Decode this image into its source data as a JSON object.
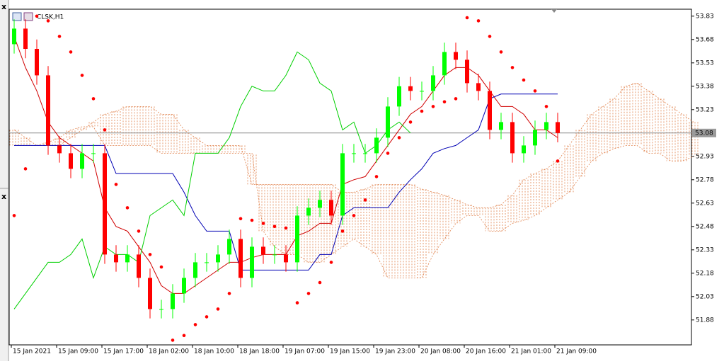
{
  "window": {
    "close_marks": [
      "x",
      "x"
    ]
  },
  "chart_data": {
    "type": "candlestick",
    "title": "CLSK,H1",
    "x_labels": [
      "15 Jan 2021",
      "15 Jan 09:00",
      "15 Jan 17:00",
      "18 Jan 02:00",
      "18 Jan 10:00",
      "18 Jan 18:00",
      "19 Jan 07:00",
      "19 Jan 15:00",
      "19 Jan 23:00",
      "20 Jan 08:00",
      "20 Jan 16:00",
      "21 Jan 01:00",
      "21 Jan 09:00"
    ],
    "ylim": [
      51.72,
      53.87
    ],
    "yticks": [
      53.83,
      53.68,
      53.53,
      53.38,
      53.23,
      52.93,
      52.78,
      52.63,
      52.48,
      52.33,
      52.18,
      52.03,
      51.88
    ],
    "last_price": 53.08,
    "up_color": "#00ff00",
    "down_color": "#ff0000",
    "open": [
      53.65,
      53.75,
      53.62,
      53.45,
      53.0,
      52.95,
      52.85,
      52.95,
      52.95,
      52.3,
      52.25,
      52.3,
      52.15,
      51.95,
      51.95,
      52.05,
      52.15,
      52.25,
      52.25,
      52.3,
      52.4,
      52.15,
      52.35,
      52.3,
      52.3,
      52.25,
      52.55,
      52.6,
      52.65,
      52.55,
      52.95,
      52.95,
      52.95,
      53.05,
      53.25,
      53.38,
      53.35,
      53.35,
      53.45,
      53.6,
      53.55,
      53.4,
      53.35,
      53.1,
      53.15,
      52.95,
      53.0,
      53.1,
      53.15
    ],
    "high": [
      53.81,
      53.81,
      53.68,
      53.51,
      53.06,
      53.01,
      53.01,
      53.01,
      53.01,
      52.36,
      52.36,
      52.36,
      52.21,
      52.01,
      52.11,
      52.21,
      52.31,
      52.31,
      52.36,
      52.46,
      52.46,
      52.41,
      52.41,
      52.36,
      52.36,
      52.61,
      52.66,
      52.71,
      52.71,
      53.01,
      53.01,
      53.01,
      53.11,
      53.31,
      53.44,
      53.44,
      53.41,
      53.51,
      53.66,
      53.66,
      53.61,
      53.46,
      53.41,
      53.21,
      53.21,
      53.06,
      53.16,
      53.21,
      53.21
    ],
    "low": [
      53.59,
      53.56,
      53.39,
      52.94,
      52.89,
      52.79,
      52.79,
      52.89,
      52.24,
      52.19,
      52.19,
      52.09,
      51.89,
      51.89,
      51.89,
      51.99,
      52.09,
      52.19,
      52.19,
      52.24,
      52.09,
      52.09,
      52.24,
      52.24,
      52.19,
      52.19,
      52.49,
      52.54,
      52.49,
      52.49,
      52.89,
      52.89,
      52.89,
      52.99,
      53.19,
      53.29,
      53.29,
      53.29,
      53.39,
      53.49,
      53.34,
      53.29,
      53.04,
      53.04,
      52.89,
      52.89,
      52.94,
      53.04,
      53.02
    ],
    "close": [
      53.75,
      53.62,
      53.45,
      53.0,
      52.95,
      52.85,
      52.95,
      52.95,
      52.3,
      52.25,
      52.3,
      52.15,
      51.95,
      51.95,
      52.05,
      52.15,
      52.25,
      52.25,
      52.3,
      52.4,
      52.15,
      52.35,
      52.3,
      52.3,
      52.25,
      52.55,
      52.6,
      52.65,
      52.55,
      52.95,
      52.95,
      52.95,
      53.05,
      53.25,
      53.38,
      53.35,
      53.35,
      53.45,
      53.6,
      53.55,
      53.4,
      53.35,
      53.1,
      53.15,
      52.95,
      53.0,
      53.1,
      53.15,
      53.08
    ],
    "lines": [
      {
        "color": "#d00000",
        "values": [
          53.7,
          53.5,
          53.35,
          53.15,
          53.05,
          53.0,
          52.95,
          52.9,
          52.6,
          52.48,
          52.45,
          52.35,
          52.25,
          52.1,
          52.05,
          52.05,
          52.1,
          52.15,
          52.2,
          52.25,
          52.25,
          52.28,
          52.3,
          52.3,
          52.3,
          52.42,
          52.45,
          52.5,
          52.5,
          52.75,
          52.78,
          52.8,
          52.9,
          53.0,
          53.1,
          53.2,
          53.25,
          53.35,
          53.45,
          53.5,
          53.5,
          53.45,
          53.35,
          53.25,
          53.25,
          53.2,
          53.1,
          53.1,
          53.05
        ]
      },
      {
        "color": "#0000b4",
        "values": [
          53.0,
          53.0,
          53.0,
          53.0,
          53.0,
          53.0,
          53.0,
          53.0,
          53.0,
          52.82,
          52.82,
          52.82,
          52.82,
          52.82,
          52.82,
          52.7,
          52.55,
          52.45,
          52.45,
          52.45,
          52.2,
          52.2,
          52.2,
          52.2,
          52.2,
          52.2,
          52.2,
          52.3,
          52.3,
          52.55,
          52.6,
          52.6,
          52.6,
          52.6,
          52.7,
          52.78,
          52.85,
          52.95,
          52.98,
          53.0,
          53.05,
          53.1,
          53.3,
          53.33,
          53.33,
          53.33,
          53.33,
          53.33,
          53.33
        ]
      },
      {
        "color": "#00d000",
        "values": [
          51.95,
          52.05,
          52.15,
          52.25,
          52.25,
          52.3,
          52.4,
          52.15,
          52.35,
          52.3,
          52.3,
          52.25,
          52.55,
          52.6,
          52.65,
          52.55,
          52.95,
          52.95,
          52.95,
          53.05,
          53.25,
          53.38,
          53.35,
          53.35,
          53.45,
          53.6,
          53.55,
          53.4,
          53.35,
          53.1,
          53.15,
          52.95,
          53.0,
          53.1,
          53.15,
          53.08
        ]
      }
    ],
    "sar": {
      "color": "#ff0000",
      "values": [
        52.55,
        52.85,
        53.83,
        53.8,
        53.7,
        53.6,
        53.45,
        53.3,
        53.1,
        52.75,
        52.6,
        52.45,
        52.3,
        52.22,
        51.75,
        51.78,
        51.85,
        51.9,
        51.95,
        52.05,
        52.53,
        52.52,
        52.5,
        52.48,
        52.47,
        51.99,
        52.05,
        52.12,
        52.25,
        52.45,
        52.55,
        52.65,
        52.8,
        52.95,
        53.05,
        53.15,
        53.22,
        53.25,
        53.28,
        53.3,
        53.82,
        53.8,
        53.7,
        53.6,
        53.5,
        53.42,
        53.35,
        53.25,
        52.9
      ]
    },
    "cloud": {
      "color": "#e0804a",
      "span_a": [
        53.1,
        53.05,
        53.0,
        53.0,
        53.0,
        53.05,
        53.1,
        53.15,
        53.2,
        53.22,
        53.25,
        53.25,
        53.25,
        53.2,
        53.2,
        53.1,
        53.05,
        53.0,
        53.0,
        53.0,
        53.0,
        52.75,
        52.75,
        52.75,
        52.75,
        52.75,
        52.75,
        52.75,
        52.75,
        52.7,
        52.7,
        52.72,
        52.75,
        52.75,
        52.75,
        52.75,
        52.72,
        52.7,
        52.68,
        52.65,
        52.62,
        52.6,
        52.6,
        52.62,
        52.68,
        52.78,
        52.82,
        52.85,
        52.9,
        53.0,
        53.1,
        53.2,
        53.25,
        53.3,
        53.38,
        53.4,
        53.35,
        53.3,
        53.25,
        53.2,
        53.15
      ],
      "span_b": [
        53.0,
        53.0,
        53.0,
        53.02,
        53.05,
        53.1,
        53.12,
        53.12,
        53.0,
        53.0,
        53.0,
        53.0,
        53.0,
        52.95,
        52.95,
        52.95,
        52.95,
        52.95,
        52.95,
        52.95,
        52.95,
        52.95,
        52.45,
        52.35,
        52.3,
        52.3,
        52.25,
        52.25,
        52.3,
        52.35,
        52.4,
        52.35,
        52.3,
        52.15,
        52.15,
        52.15,
        52.15,
        52.3,
        52.4,
        52.5,
        52.55,
        52.55,
        52.45,
        52.45,
        52.5,
        52.52,
        52.55,
        52.6,
        52.65,
        52.7,
        52.8,
        52.9,
        52.95,
        52.98,
        53.0,
        53.0,
        52.95,
        52.95,
        52.9,
        52.9,
        52.93
      ]
    }
  }
}
